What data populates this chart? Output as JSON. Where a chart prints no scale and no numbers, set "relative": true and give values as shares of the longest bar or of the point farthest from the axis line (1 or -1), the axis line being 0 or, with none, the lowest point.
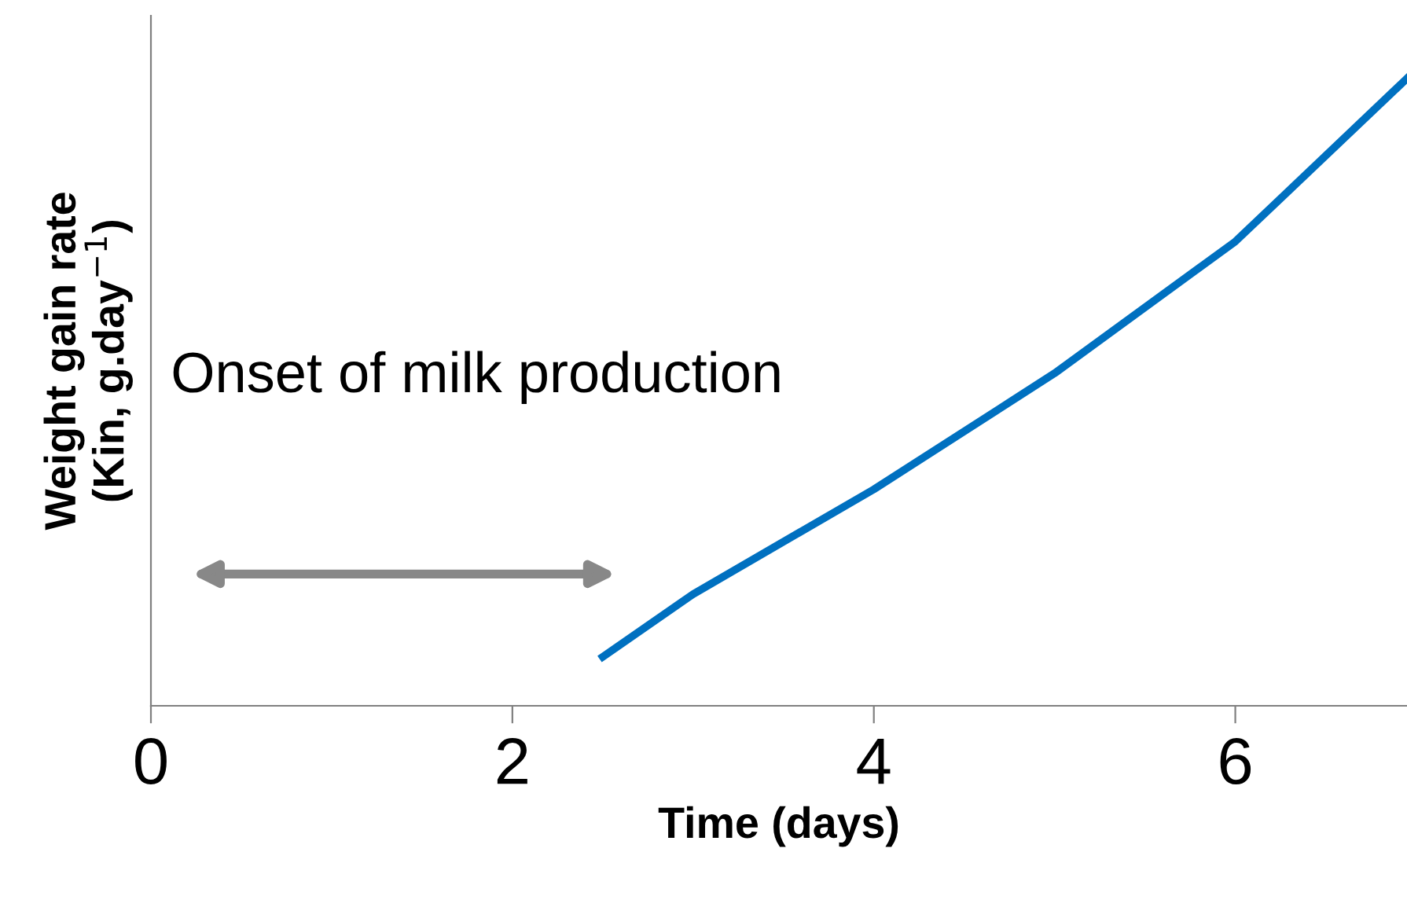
{
  "chart_data": {
    "type": "line",
    "xlabel": "Time (days)",
    "ylabel": "Weight gain rate\n(Kin, g.day$^{−1}$)",
    "x": [
      2.5,
      3,
      4,
      5,
      6,
      6.95
    ],
    "series": [
      {
        "color": "#0070c0",
        "values": [
          0.078,
          0.178,
          0.345,
          0.53,
          0.74,
          1
        ]
      }
    ],
    "relative": true,
    "xlim": [
      0,
      6.95
    ],
    "xticks": [
      0,
      2,
      4,
      6
    ],
    "grid": false,
    "legend": false,
    "annotations": [
      "Onset of milk production"
    ]
  }
}
